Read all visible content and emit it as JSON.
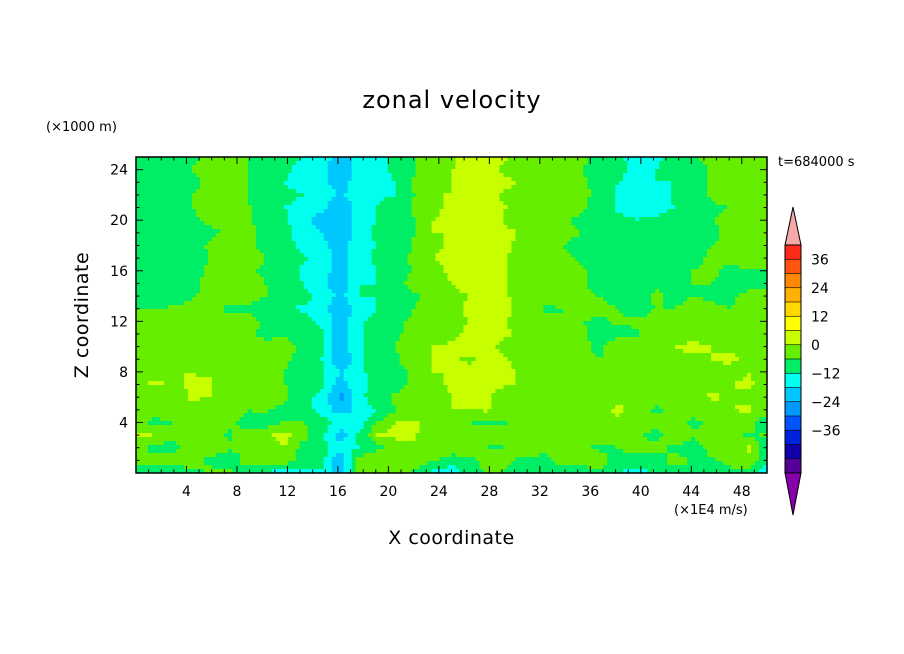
{
  "chart_data": {
    "type": "heatmap",
    "title": "zonal velocity",
    "xlabel": "X coordinate",
    "ylabel": "Z coordinate",
    "y_unit_label": "(×1000 m)",
    "x_unit_label": "(×1E4 m/s)",
    "time_label": "t=684000 s",
    "xlim": [
      0,
      50
    ],
    "ylim": [
      0,
      25
    ],
    "x_ticks": [
      "4",
      "8",
      "12",
      "16",
      "20",
      "24",
      "28",
      "32",
      "36",
      "40",
      "44",
      "48"
    ],
    "x_tick_values": [
      4,
      8,
      12,
      16,
      20,
      24,
      28,
      32,
      36,
      40,
      44,
      48
    ],
    "y_ticks": [
      "4",
      "8",
      "12",
      "16",
      "20",
      "24"
    ],
    "y_tick_values": [
      4,
      8,
      12,
      16,
      20,
      24
    ],
    "colorbar": {
      "tick_labels": [
        "36",
        "24",
        "12",
        "0",
        "−12",
        "−24",
        "−36"
      ],
      "tick_values": [
        36,
        24,
        12,
        0,
        -12,
        -24,
        -36
      ],
      "levels": [
        42,
        36,
        30,
        24,
        18,
        12,
        6,
        0,
        -6,
        -12,
        -18,
        -24,
        -30,
        -36,
        -42
      ],
      "colors": [
        "#ff2a1a",
        "#ff5510",
        "#ff8800",
        "#ffb000",
        "#ffd800",
        "#ffff00",
        "#c8ff00",
        "#66ee00",
        "#00ee66",
        "#00ffee",
        "#00c8ff",
        "#0099ff",
        "#0055ff",
        "#0022dd",
        "#1100aa",
        "#550099"
      ],
      "over_color": "#f8a8a8",
      "under_color": "#8800aa"
    },
    "field": [
      [
        -5,
        -6,
        -4,
        -3,
        2,
        1,
        -3,
        -7,
        -10,
        -8,
        -8,
        -15,
        2,
        5,
        3,
        -2,
        -8,
        -9,
        -3,
        1,
        -1,
        -4,
        -5,
        -7,
        -4,
        0,
        -6,
        -8,
        -5,
        -3,
        -2,
        -4,
        -2,
        -3,
        -10
      ],
      [
        2,
        3,
        3,
        4,
        -2,
        -3,
        2,
        3,
        4,
        -3,
        -3,
        -18,
        3,
        6,
        5,
        4,
        1,
        -4,
        -2,
        3,
        2,
        -3,
        -2,
        4,
        3,
        2,
        -2,
        -3,
        -4,
        3,
        -1,
        -1,
        2,
        5,
        -4
      ],
      [
        2,
        -2,
        -3,
        6,
        4,
        1,
        0,
        2,
        6,
        -2,
        -4,
        -10,
        -6,
        -2,
        2,
        5,
        6,
        5,
        4,
        -1,
        0,
        6,
        2,
        4,
        1,
        -1,
        0,
        4,
        3,
        -2,
        -3,
        2,
        0,
        7,
        -8
      ],
      [
        7,
        6,
        2,
        5,
        4,
        -1,
        3,
        5,
        8,
        2,
        -4,
        -15,
        -5,
        6,
        8,
        7,
        1,
        4,
        6,
        4,
        2,
        5,
        3,
        6,
        5,
        2,
        2,
        1,
        -3,
        6,
        1,
        2,
        4,
        -1,
        1
      ],
      [
        1,
        -1,
        0,
        6,
        2,
        1,
        -2,
        -3,
        1,
        0,
        -2,
        -8,
        -9,
        0,
        6,
        7,
        3,
        0,
        0,
        -2,
        0,
        2,
        0,
        2,
        5,
        4,
        5,
        5,
        3,
        3,
        -2,
        2,
        1,
        3,
        -4
      ],
      [
        3,
        2,
        2,
        4,
        2,
        4,
        0,
        1,
        -3,
        -2,
        -9,
        -15,
        -10,
        -6,
        0,
        2,
        2,
        6,
        6,
        7,
        0,
        1,
        4,
        2,
        6,
        4,
        7,
        3,
        -2,
        2,
        3,
        3,
        6,
        7,
        2
      ],
      [
        3,
        1,
        2,
        7,
        6,
        4,
        6,
        4,
        2,
        -5,
        -7,
        -20,
        -8,
        -2,
        1,
        3,
        2,
        6,
        6,
        7,
        1,
        3,
        4,
        4,
        6,
        4,
        5,
        4,
        6,
        3,
        2,
        7,
        5,
        5,
        0
      ],
      [
        5,
        7,
        5,
        7,
        7,
        2,
        4,
        2,
        0,
        -1,
        -5,
        -15,
        -7,
        -5,
        -2,
        1,
        4,
        7,
        8,
        7,
        7,
        4,
        6,
        3,
        2,
        1,
        5,
        4,
        4,
        4,
        6,
        4,
        6,
        7,
        4
      ],
      [
        3,
        4,
        6,
        6,
        5,
        3,
        2,
        4,
        0,
        -3,
        -5,
        -12,
        -9,
        -1,
        -3,
        1,
        6,
        6,
        8,
        7,
        8,
        3,
        0,
        2,
        4,
        1,
        3,
        3,
        4,
        4,
        5,
        5,
        4,
        6,
        3
      ],
      [
        5,
        4,
        6,
        5,
        4,
        3,
        0,
        4,
        1,
        -2,
        -6,
        -18,
        -8,
        -2,
        -1,
        5,
        6,
        7,
        5,
        9,
        6,
        2,
        0,
        3,
        1,
        0,
        2,
        6,
        5,
        5,
        5,
        6,
        7,
        5,
        4
      ],
      [
        3,
        4,
        6,
        6,
        4,
        3,
        3,
        2,
        3,
        -2,
        -5,
        -16,
        -7,
        -4,
        0,
        4,
        6,
        7,
        8,
        7,
        4,
        5,
        1,
        2,
        2,
        -2,
        5,
        6,
        4,
        6,
        7,
        6,
        5,
        4,
        5
      ],
      [
        2,
        4,
        3,
        4,
        3,
        3,
        2,
        -2,
        -1,
        -3,
        -5,
        -18,
        -6,
        -6,
        -1,
        2,
        4,
        4,
        8,
        8,
        7,
        3,
        0,
        0,
        1,
        -2,
        -2,
        -1,
        2,
        5,
        4,
        5,
        4,
        3,
        4
      ],
      [
        2,
        2,
        0,
        2,
        1,
        3,
        2,
        -1,
        -1,
        -3,
        -8,
        -16,
        -7,
        -4,
        -2,
        2,
        3,
        4,
        6,
        6,
        6,
        2,
        1,
        0,
        0,
        -1,
        1,
        1,
        2,
        1,
        2,
        0,
        1,
        4,
        3
      ],
      [
        0,
        0,
        1,
        3,
        1,
        -1,
        -1,
        -2,
        -5,
        -7,
        -8,
        -18,
        -10,
        -6,
        -4,
        0,
        5,
        5,
        7,
        6,
        7,
        4,
        -1,
        0,
        3,
        1,
        0,
        -3,
        0,
        0,
        2,
        1,
        0,
        2,
        2
      ],
      [
        -3,
        -5,
        -4,
        -1,
        3,
        4,
        2,
        0,
        -2,
        -4,
        -8,
        -13,
        -6,
        -6,
        -5,
        -1,
        3,
        4,
        6,
        6,
        6,
        5,
        2,
        2,
        1,
        0,
        -2,
        -4,
        2,
        -2,
        0,
        -1,
        -1,
        1,
        2
      ],
      [
        -5,
        -3,
        -5,
        -2,
        2,
        4,
        3,
        0,
        -3,
        -6,
        -10,
        -18,
        -6,
        -6,
        -3,
        3,
        5,
        6,
        9,
        8,
        6,
        2,
        3,
        3,
        1,
        -3,
        -3,
        -2,
        -2,
        -2,
        0,
        0,
        -1,
        -1,
        -1
      ],
      [
        -3,
        -5,
        -6,
        -2,
        1,
        3,
        2,
        -2,
        -2,
        -7,
        -8,
        -16,
        -7,
        -6,
        -5,
        1,
        4,
        7,
        8,
        7,
        6,
        3,
        1,
        3,
        1,
        -3,
        -4,
        -4,
        -4,
        -4,
        0,
        1,
        -1,
        0,
        0
      ],
      [
        -1,
        -3,
        -4,
        -2,
        0,
        3,
        4,
        0,
        -2,
        -5,
        -8,
        -15,
        -8,
        -5,
        -4,
        2,
        6,
        7,
        7,
        8,
        6,
        2,
        2,
        1,
        -1,
        0,
        -3,
        -4,
        -5,
        -3,
        -2,
        1,
        1,
        1,
        0
      ],
      [
        -1,
        -4,
        -5,
        -2,
        1,
        2,
        2,
        -3,
        -3,
        -8,
        -10,
        -16,
        -7,
        -6,
        -6,
        1,
        5,
        7,
        7,
        8,
        7,
        3,
        2,
        0,
        -1,
        -3,
        -6,
        -4,
        -5,
        -3,
        -2,
        0,
        1,
        1,
        0
      ],
      [
        -2,
        -3,
        -2,
        -2,
        -1,
        1,
        3,
        -3,
        -5,
        -8,
        -12,
        -17,
        -9,
        -5,
        -6,
        0,
        6,
        6,
        6,
        9,
        7,
        5,
        3,
        1,
        0,
        -2,
        -5,
        -4,
        -5,
        -4,
        -3,
        -1,
        1,
        0,
        1
      ],
      [
        -4,
        -5,
        -3,
        -1,
        1,
        1,
        1,
        -4,
        -5,
        -9,
        -16,
        -14,
        -11,
        -5,
        -5,
        0,
        6,
        7,
        8,
        9,
        5,
        3,
        3,
        2,
        -2,
        -3,
        -5,
        -6,
        -5,
        -4,
        -4,
        0,
        1,
        2,
        2
      ],
      [
        -3,
        -4,
        -3,
        0,
        2,
        2,
        1,
        -5,
        -6,
        -7,
        -10,
        -17,
        -10,
        -6,
        -3,
        1,
        4,
        8,
        7,
        8,
        6,
        5,
        4,
        4,
        1,
        -3,
        -7,
        -8,
        -8,
        -6,
        -6,
        -1,
        0,
        2,
        2
      ],
      [
        -3,
        -2,
        -3,
        0,
        1,
        2,
        0,
        -3,
        -5,
        -6,
        -8,
        -13,
        -9,
        -7,
        -6,
        0,
        6,
        6,
        7,
        7,
        5,
        4,
        3,
        2,
        2,
        -2,
        -7,
        -9,
        -9,
        -5,
        -4,
        1,
        2,
        2,
        0
      ],
      [
        -4,
        -5,
        -4,
        -1,
        1,
        0,
        0,
        -4,
        -6,
        -8,
        -11,
        -14,
        -10,
        -8,
        -6,
        1,
        5,
        6,
        8,
        8,
        7,
        5,
        4,
        3,
        1,
        -2,
        -6,
        -7,
        -6,
        -6,
        -2,
        1,
        2,
        1,
        1
      ],
      [
        -3,
        -6,
        -5,
        0,
        2,
        3,
        0,
        -5,
        -5,
        -8,
        -10,
        -17,
        -9,
        -7,
        -5,
        -1,
        4,
        6,
        7,
        7,
        5,
        4,
        2,
        3,
        0,
        -2,
        -4,
        -9,
        -6,
        -3,
        -3,
        1,
        1,
        1,
        0
      ],
      [
        -4,
        -5,
        -5,
        -1,
        1,
        1,
        0,
        -4,
        -5,
        -6,
        -8,
        -15,
        -9,
        -8,
        -5,
        0,
        5,
        5,
        8,
        8,
        6,
        4,
        2,
        2,
        1,
        -1,
        -5,
        -8,
        -8,
        -3,
        -1,
        2,
        1,
        0,
        0
      ]
    ]
  }
}
